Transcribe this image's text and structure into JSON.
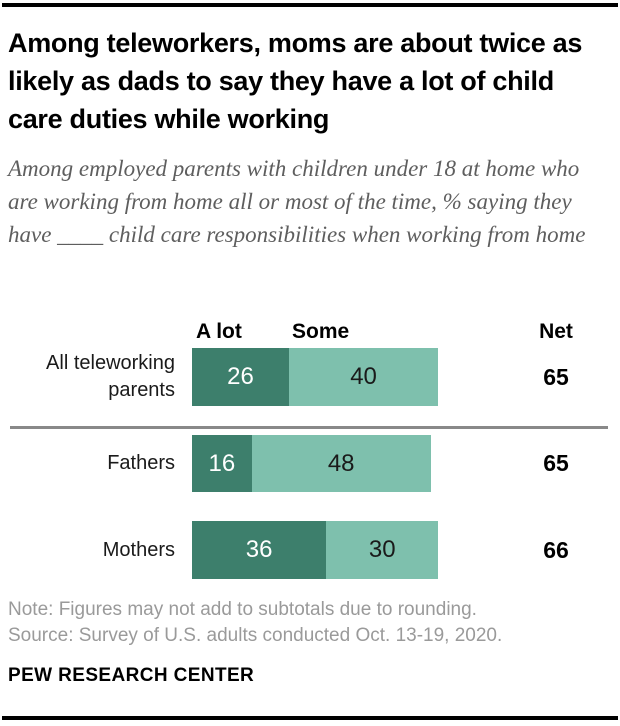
{
  "header": {
    "title": "Among teleworkers, moms are about twice as likely as dads to say they have a lot of child care duties while working",
    "subtitle": "Among employed parents with children under 18 at home who are working from home all or most of the time, % saying they have ____ child care responsibilities when working from home"
  },
  "chart_data": {
    "type": "bar",
    "orientation": "horizontal",
    "stacked": true,
    "unit": "percent",
    "title": "Among teleworkers, moms are about twice as likely as dads to say they have a lot of child care duties while working",
    "categories": [
      "All teleworking parents",
      "Fathers",
      "Mothers"
    ],
    "legend": [
      "A lot",
      "Some"
    ],
    "legend_position": "top",
    "series": [
      {
        "name": "A lot",
        "color": "#3d7f6c",
        "values": [
          26,
          16,
          36
        ]
      },
      {
        "name": "Some",
        "color": "#7ec0ad",
        "values": [
          40,
          48,
          30
        ]
      }
    ],
    "net_label": "Net",
    "net_values": [
      65,
      65,
      66
    ],
    "xlim": [
      0,
      100
    ],
    "grid": false
  },
  "footer": {
    "note": "Note: Figures may not add to subtotals due to rounding.",
    "source": "Source: Survey of U.S. adults conducted Oct. 13-19, 2020.",
    "brand": "PEW RESEARCH CENTER"
  },
  "colors": {
    "a_lot": "#3d7f6c",
    "some": "#7ec0ad",
    "subtitle_gray": "#5e5e5e",
    "note_gray": "#9a9a9a",
    "divider_gray": "#898989",
    "rule_black": "#000000"
  }
}
